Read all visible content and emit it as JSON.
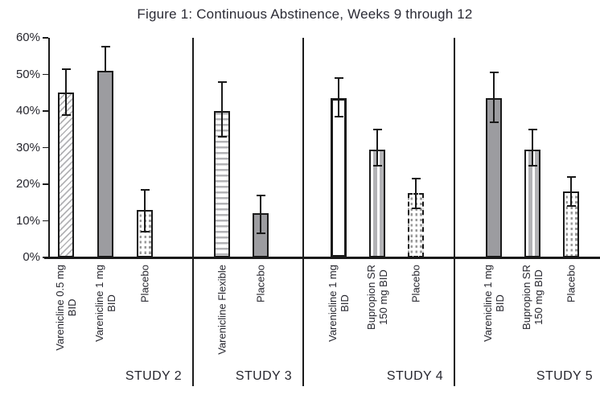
{
  "title": "Figure 1: Continuous Abstinence, Weeks 9 through 12",
  "colors": {
    "bar_gray": "#9c9ca0",
    "pattern_gray": "#b2b2b5",
    "dot_gray": "#9a9a9a",
    "line_black": "#1a1a1a",
    "text": "#26262e"
  },
  "y_axis": {
    "unit": "%",
    "tick_labels": [
      "60%",
      "50%",
      "40%",
      "30%",
      "20%",
      "10%",
      "0%"
    ],
    "tick_values": [
      60,
      50,
      40,
      30,
      20,
      10,
      0
    ]
  },
  "chart_data": {
    "type": "bar",
    "title": "Figure 1: Continuous Abstinence, Weeks 9 through 12",
    "xlabel": "",
    "ylabel": "",
    "ylim": [
      0,
      60
    ],
    "grid": false,
    "legend": false,
    "error_bars": true,
    "groups": [
      {
        "study": "STUDY 2",
        "bars": [
          {
            "label": [
              "Varenicline 0.5 mg",
              "BID"
            ],
            "value": 45,
            "ci_low": 39,
            "ci_high": 51.5,
            "pattern": "diagonal-hatch"
          },
          {
            "label": [
              "Varenicline 1 mg",
              "BID"
            ],
            "value": 51,
            "ci_low": null,
            "ci_high": 57.5,
            "pattern": "solid-gray"
          },
          {
            "label": [
              "Placebo"
            ],
            "value": 13,
            "ci_low": 7,
            "ci_high": 18.5,
            "pattern": "dots-solid-border"
          }
        ]
      },
      {
        "study": "STUDY 3",
        "bars": [
          {
            "label": [
              "Varenicline Flexible"
            ],
            "value": 40,
            "ci_low": 33,
            "ci_high": 48,
            "pattern": "horizontal-stripes"
          },
          {
            "label": [
              "Placebo"
            ],
            "value": 12,
            "ci_low": 6.5,
            "ci_high": 17,
            "pattern": "solid-gray"
          }
        ]
      },
      {
        "study": "STUDY 4",
        "bars": [
          {
            "label": [
              "Varenicline 1 mg",
              "BID"
            ],
            "value": 43.5,
            "ci_low": 38.5,
            "ci_high": 49,
            "pattern": "white"
          },
          {
            "label": [
              "Bupropion SR",
              "150 mg BID"
            ],
            "value": 29.5,
            "ci_low": 25,
            "ci_high": 35,
            "pattern": "vertical-stripes"
          },
          {
            "label": [
              "Placebo"
            ],
            "value": 17.5,
            "ci_low": 13.5,
            "ci_high": 21.5,
            "pattern": "dots-dashed-border"
          }
        ]
      },
      {
        "study": "STUDY 5",
        "bars": [
          {
            "label": [
              "Varenicline 1 mg",
              "BID"
            ],
            "value": 43.5,
            "ci_low": 37,
            "ci_high": 50.5,
            "pattern": "solid-gray"
          },
          {
            "label": [
              "Bupropion SR",
              "150 mg BID"
            ],
            "value": 29.5,
            "ci_low": 25,
            "ci_high": 35,
            "pattern": "vertical-stripes"
          },
          {
            "label": [
              "Placebo"
            ],
            "value": 18,
            "ci_low": 14,
            "ci_high": 22,
            "pattern": "dots-solid-border"
          }
        ]
      }
    ]
  }
}
